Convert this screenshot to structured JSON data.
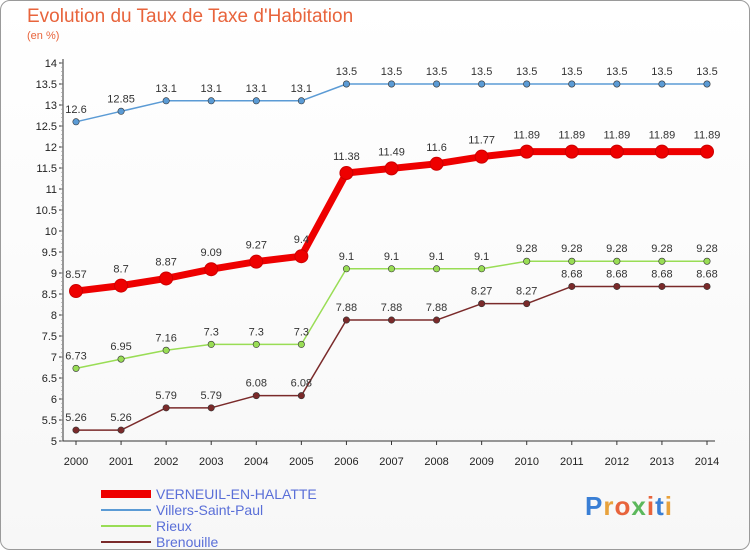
{
  "title": "Evolution du Taux de Taxe d'Habitation",
  "subtitle": "(en %)",
  "logo": {
    "text": "Proxiti",
    "colors": [
      "#3a7fd5",
      "#e8a23c",
      "#e8643c",
      "#5cb85c",
      "#e8643c",
      "#3a7fd5",
      "#e8a23c"
    ]
  },
  "chart_data": {
    "type": "line",
    "x": [
      2000,
      2001,
      2002,
      2003,
      2004,
      2005,
      2006,
      2007,
      2008,
      2009,
      2010,
      2011,
      2012,
      2013,
      2014
    ],
    "ylim": [
      5,
      14
    ],
    "yticks": [
      "5",
      "5.5",
      "6",
      "6.5",
      "7",
      "7.5",
      "8",
      "8.5",
      "9",
      "9.5",
      "10",
      "10.5",
      "11",
      "11.5",
      "12",
      "12.5",
      "13",
      "13.5",
      "14"
    ],
    "grid": false,
    "legend_position": "bottom-left",
    "series": [
      {
        "name": "VERNEUIL-EN-HALATTE",
        "color": "#ee0000",
        "width": 7,
        "values": [
          8.57,
          8.7,
          8.87,
          9.09,
          9.27,
          9.4,
          11.38,
          11.49,
          11.6,
          11.77,
          11.89,
          11.89,
          11.89,
          11.89,
          11.89
        ],
        "labels": [
          "8.57",
          "8.7",
          "8.87",
          "9.09",
          "9.27",
          "9.4",
          "11.38",
          "11.49",
          "11.6",
          "11.77",
          "11.89",
          "11.89",
          "11.89",
          "11.89",
          "11.89"
        ]
      },
      {
        "name": "Villers-Saint-Paul",
        "color": "#5b9bd5",
        "width": 1.5,
        "values": [
          12.6,
          12.85,
          13.1,
          13.1,
          13.1,
          13.1,
          13.5,
          13.5,
          13.5,
          13.5,
          13.5,
          13.5,
          13.5,
          13.5,
          13.5
        ],
        "labels": [
          "12.6",
          "12.85",
          "13.1",
          "13.1",
          "13.1",
          "13.1",
          "13.5",
          "13.5",
          "13.5",
          "13.5",
          "13.5",
          "13.5",
          "13.5",
          "13.5",
          "13.5"
        ]
      },
      {
        "name": "Rieux",
        "color": "#99dd55",
        "width": 1.5,
        "values": [
          6.73,
          6.95,
          7.16,
          7.3,
          7.3,
          7.3,
          9.1,
          9.1,
          9.1,
          9.1,
          9.28,
          9.28,
          9.28,
          9.28,
          9.28
        ],
        "labels": [
          "6.73",
          "6.95",
          "7.16",
          "7.3",
          "7.3",
          "7.3",
          "9.1",
          "9.1",
          "9.1",
          "9.1",
          "9.28",
          "9.28",
          "9.28",
          "9.28",
          "9.28"
        ]
      },
      {
        "name": "Brenouille",
        "color": "#7a2a2a",
        "width": 1.5,
        "values": [
          5.26,
          5.26,
          5.79,
          5.79,
          6.08,
          6.08,
          7.88,
          7.88,
          7.88,
          8.27,
          8.27,
          8.68,
          8.68,
          8.68,
          8.68
        ],
        "labels": [
          "5.26",
          "5.26",
          "5.79",
          "5.79",
          "6.08",
          "6.08",
          "7.88",
          "7.88",
          "7.88",
          "8.27",
          "8.27",
          "8.68",
          "8.68",
          "8.68",
          "8.68"
        ]
      }
    ]
  }
}
